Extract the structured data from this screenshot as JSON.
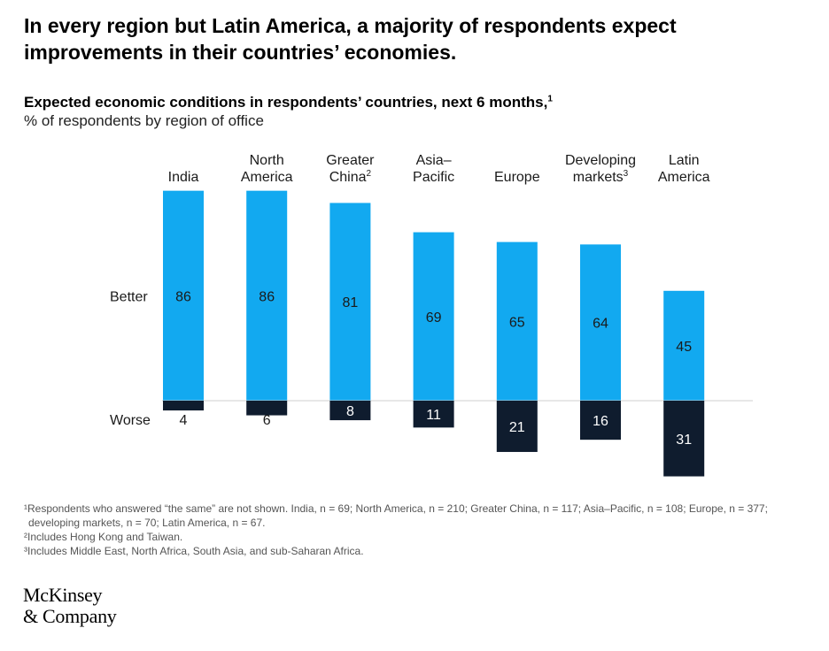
{
  "headline": "In every region but Latin America, a majority of respondents expect improvements in their countries’ economies.",
  "subtitle": "Expected economic conditions in respondents’ countries, next 6 months,",
  "subtitle_footnote": "1",
  "units_label": "% of respondents by region of office",
  "chart_data": {
    "type": "bar",
    "title": "Expected economic conditions in respondents’ countries, next 6 months",
    "subtitle": "% of respondents by region of office",
    "categories": [
      {
        "lines": [
          "India"
        ],
        "sup": ""
      },
      {
        "lines": [
          "North",
          "America"
        ],
        "sup": ""
      },
      {
        "lines": [
          "Greater",
          "China"
        ],
        "sup": "2"
      },
      {
        "lines": [
          "Asia–",
          "Pacific"
        ],
        "sup": ""
      },
      {
        "lines": [
          "Europe"
        ],
        "sup": ""
      },
      {
        "lines": [
          "Developing",
          "markets"
        ],
        "sup": "3"
      },
      {
        "lines": [
          "Latin",
          "America"
        ],
        "sup": ""
      }
    ],
    "series": [
      {
        "name": "Better",
        "values": [
          86,
          86,
          81,
          69,
          65,
          64,
          45
        ],
        "color": "#12a9f0",
        "label_color": "#1a1a1a",
        "direction": "up"
      },
      {
        "name": "Worse",
        "values": [
          4,
          6,
          8,
          11,
          21,
          16,
          31
        ],
        "color": "#0f1c2e",
        "label_color": "#ffffff",
        "direction": "down"
      }
    ],
    "grid": false,
    "legend": "row labels at left"
  },
  "footnotes": [
    "¹Respondents who answered “the same” are not shown. India, n = 69; North America, n = 210; Greater China, n = 117; Asia–Pacific, n = 108; Europe, n = 377;",
    "developing markets, n = 70; Latin America, n = 67.",
    "²Includes Hong Kong and Taiwan.",
    "³Includes Middle East, North Africa, South Asia, and sub-Saharan Africa."
  ],
  "logo": {
    "line1": "McKinsey",
    "line2": "& Company"
  }
}
